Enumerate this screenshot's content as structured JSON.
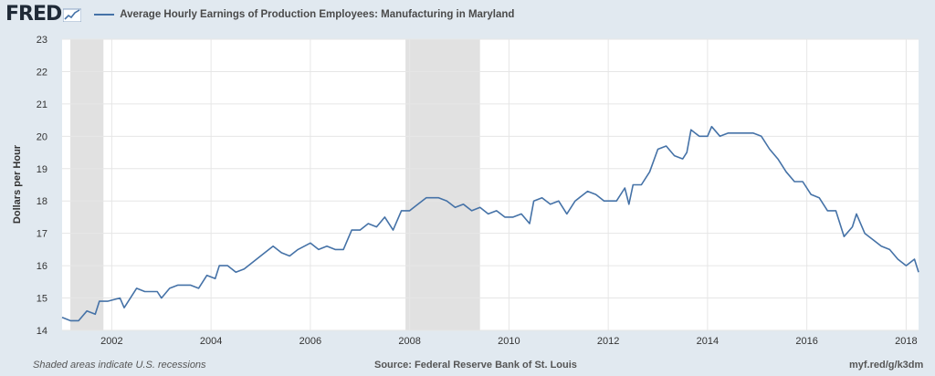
{
  "header": {
    "logo_text": "FRED",
    "logo_icon": "fred-chart-icon"
  },
  "chart_data": {
    "type": "line",
    "title": "Average Hourly Earnings of Production Employees: Manufacturing in Maryland",
    "ylabel": "Dollars per Hour",
    "xlabel": "",
    "ylim": [
      14,
      23
    ],
    "y_ticks": [
      14,
      15,
      16,
      17,
      18,
      19,
      20,
      21,
      22,
      23
    ],
    "x_ticks": [
      "2002",
      "2004",
      "2006",
      "2008",
      "2010",
      "2012",
      "2014",
      "2016",
      "2018"
    ],
    "x_range": [
      "2001-01",
      "2018-04"
    ],
    "grid": true,
    "legend": "top",
    "recessions": [
      {
        "start": "2001-03",
        "end": "2001-11"
      },
      {
        "start": "2007-12",
        "end": "2009-06"
      }
    ],
    "series": [
      {
        "name": "Average Hourly Earnings of Production Employees: Manufacturing in Maryland",
        "color": "#4572a7",
        "points": [
          [
            "2001-01",
            14.4
          ],
          [
            "2001-03",
            14.3
          ],
          [
            "2001-05",
            14.3
          ],
          [
            "2001-07",
            14.6
          ],
          [
            "2001-09",
            14.5
          ],
          [
            "2001-10",
            14.9
          ],
          [
            "2001-12",
            14.9
          ],
          [
            "2002-03",
            15.0
          ],
          [
            "2002-04",
            14.7
          ],
          [
            "2002-07",
            15.3
          ],
          [
            "2002-09",
            15.2
          ],
          [
            "2002-12",
            15.2
          ],
          [
            "2003-01",
            15.0
          ],
          [
            "2003-03",
            15.3
          ],
          [
            "2003-05",
            15.4
          ],
          [
            "2003-08",
            15.4
          ],
          [
            "2003-10",
            15.3
          ],
          [
            "2003-12",
            15.7
          ],
          [
            "2004-02",
            15.6
          ],
          [
            "2004-03",
            16.0
          ],
          [
            "2004-05",
            16.0
          ],
          [
            "2004-07",
            15.8
          ],
          [
            "2004-09",
            15.9
          ],
          [
            "2004-11",
            16.1
          ],
          [
            "2005-02",
            16.4
          ],
          [
            "2005-04",
            16.6
          ],
          [
            "2005-06",
            16.4
          ],
          [
            "2005-08",
            16.3
          ],
          [
            "2005-10",
            16.5
          ],
          [
            "2006-01",
            16.7
          ],
          [
            "2006-03",
            16.5
          ],
          [
            "2006-05",
            16.6
          ],
          [
            "2006-07",
            16.5
          ],
          [
            "2006-09",
            16.5
          ],
          [
            "2006-11",
            17.1
          ],
          [
            "2007-01",
            17.1
          ],
          [
            "2007-03",
            17.3
          ],
          [
            "2007-05",
            17.2
          ],
          [
            "2007-07",
            17.5
          ],
          [
            "2007-09",
            17.1
          ],
          [
            "2007-11",
            17.7
          ],
          [
            "2008-01",
            17.7
          ],
          [
            "2008-03",
            17.9
          ],
          [
            "2008-05",
            18.1
          ],
          [
            "2008-08",
            18.1
          ],
          [
            "2008-10",
            18.0
          ],
          [
            "2008-12",
            17.8
          ],
          [
            "2009-02",
            17.9
          ],
          [
            "2009-04",
            17.7
          ],
          [
            "2009-06",
            17.8
          ],
          [
            "2009-08",
            17.6
          ],
          [
            "2009-10",
            17.7
          ],
          [
            "2009-12",
            17.5
          ],
          [
            "2010-02",
            17.5
          ],
          [
            "2010-04",
            17.6
          ],
          [
            "2010-06",
            17.3
          ],
          [
            "2010-07",
            18.0
          ],
          [
            "2010-09",
            18.1
          ],
          [
            "2010-11",
            17.9
          ],
          [
            "2011-01",
            18.0
          ],
          [
            "2011-03",
            17.6
          ],
          [
            "2011-05",
            18.0
          ],
          [
            "2011-07",
            18.2
          ],
          [
            "2011-08",
            18.3
          ],
          [
            "2011-10",
            18.2
          ],
          [
            "2011-12",
            18.0
          ],
          [
            "2012-03",
            18.0
          ],
          [
            "2012-05",
            18.4
          ],
          [
            "2012-06",
            17.9
          ],
          [
            "2012-07",
            18.5
          ],
          [
            "2012-09",
            18.5
          ],
          [
            "2012-11",
            18.9
          ],
          [
            "2013-01",
            19.6
          ],
          [
            "2013-03",
            19.7
          ],
          [
            "2013-05",
            19.4
          ],
          [
            "2013-07",
            19.3
          ],
          [
            "2013-08",
            19.5
          ],
          [
            "2013-09",
            20.2
          ],
          [
            "2013-11",
            20.0
          ],
          [
            "2014-01",
            20.0
          ],
          [
            "2014-02",
            20.3
          ],
          [
            "2014-04",
            20.0
          ],
          [
            "2014-06",
            20.1
          ],
          [
            "2014-09",
            20.1
          ],
          [
            "2014-12",
            20.1
          ],
          [
            "2015-02",
            20.0
          ],
          [
            "2015-04",
            19.6
          ],
          [
            "2015-06",
            19.3
          ],
          [
            "2015-08",
            18.9
          ],
          [
            "2015-10",
            18.6
          ],
          [
            "2015-12",
            18.6
          ],
          [
            "2016-02",
            18.2
          ],
          [
            "2016-04",
            18.1
          ],
          [
            "2016-06",
            17.7
          ],
          [
            "2016-08",
            17.7
          ],
          [
            "2016-10",
            16.9
          ],
          [
            "2016-12",
            17.2
          ],
          [
            "2017-01",
            17.6
          ],
          [
            "2017-03",
            17.0
          ],
          [
            "2017-05",
            16.8
          ],
          [
            "2017-07",
            16.6
          ],
          [
            "2017-09",
            16.5
          ],
          [
            "2017-11",
            16.2
          ],
          [
            "2018-01",
            16.0
          ],
          [
            "2018-03",
            16.2
          ],
          [
            "2018-04",
            15.8
          ]
        ]
      }
    ]
  },
  "footer": {
    "left": "Shaded areas indicate U.S. recessions",
    "source": "Source: Federal Reserve Bank of St. Louis",
    "url": "myf.red/g/k3dm"
  }
}
